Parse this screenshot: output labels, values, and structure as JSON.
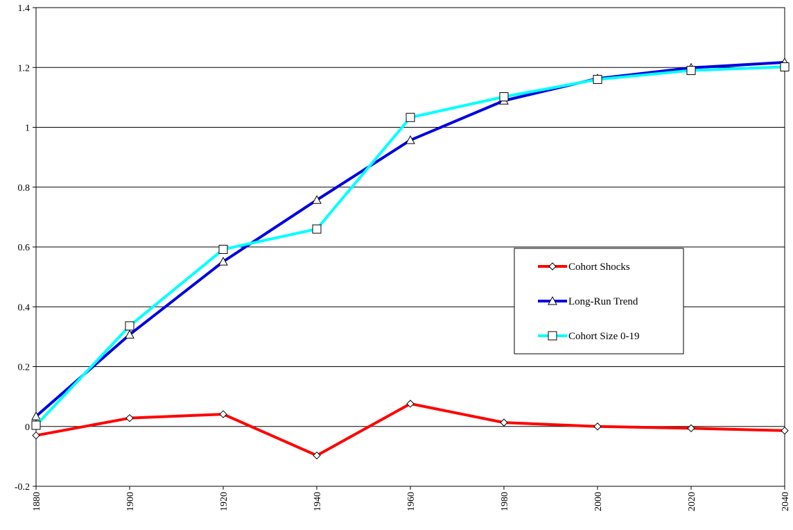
{
  "chart_data": {
    "type": "line",
    "title": "",
    "xlabel": "",
    "ylabel": "",
    "x": [
      1880,
      1900,
      1920,
      1940,
      1960,
      1980,
      2000,
      2020,
      2040
    ],
    "x_tick_labels": [
      "1880",
      "1900",
      "1920",
      "1940",
      "1960",
      "1980",
      "2000",
      "2020",
      "2040"
    ],
    "ylim": [
      -0.2,
      1.4
    ],
    "y_ticks": [
      -0.2,
      0,
      0.2,
      0.4,
      0.6,
      0.8,
      1,
      1.2,
      1.4
    ],
    "y_tick_labels": [
      "-0.2",
      "0",
      "0.2",
      "0.4",
      "0.6",
      "0.8",
      "1",
      "1.2",
      "1.4"
    ],
    "grid": "horizontal",
    "legend_position": "center-right",
    "series": [
      {
        "name": "Cohort Shocks",
        "color": "#ff0000",
        "marker": "diamond",
        "values": [
          -0.03,
          0.028,
          0.041,
          -0.097,
          0.076,
          0.013,
          0.0,
          -0.006,
          -0.014
        ]
      },
      {
        "name": "Long-Run Trend",
        "color": "#0000e0",
        "marker": "triangle",
        "values": [
          0.034,
          0.307,
          0.551,
          0.757,
          0.957,
          1.089,
          1.163,
          1.199,
          1.217
        ]
      },
      {
        "name": "Cohort Size 0-19",
        "color": "#00ffff",
        "marker": "square",
        "values": [
          0.004,
          0.336,
          0.592,
          0.66,
          1.033,
          1.102,
          1.16,
          1.19,
          1.202
        ]
      }
    ]
  }
}
